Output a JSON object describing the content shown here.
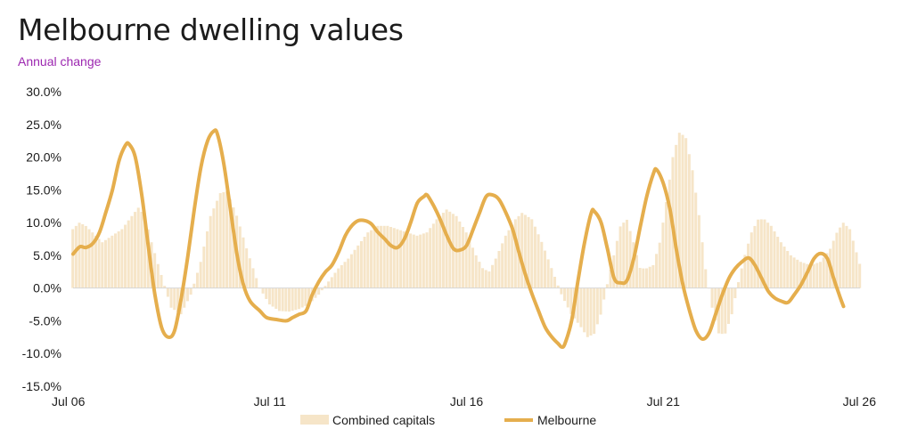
{
  "header": {
    "title": "Melbourne dwelling values",
    "subtitle": "Annual change"
  },
  "colors": {
    "bars": "#f6e5c8",
    "line": "#e5ae4d",
    "subtitle": "#9c27b0"
  },
  "chart_data": {
    "type": "bar",
    "title": "Melbourne dwelling values",
    "subtitle": "Annual change",
    "y_tick_labels": [
      "30.0%",
      "25.0%",
      "20.0%",
      "15.0%",
      "10.0%",
      "5.0%",
      "0.0%",
      "-5.0%",
      "-10.0%",
      "-15.0%"
    ],
    "x_tick_labels": [
      "Jul 06",
      "Jul 11",
      "Jul 16",
      "Jul 21",
      "Jul 26"
    ],
    "x_ticks": [
      2006.5,
      2011.5,
      2016.5,
      2021.5,
      2026.5
    ],
    "xlim": [
      2006.5,
      2026.5
    ],
    "ylim": [
      -15,
      30
    ],
    "grid": false,
    "legend_position": "bottom",
    "series": [
      {
        "name": "Combined capitals",
        "kind": "bar",
        "points": [
          [
            2006.5,
            9
          ],
          [
            2006.67,
            10
          ],
          [
            2006.83,
            9.5
          ],
          [
            2007.0,
            8.5
          ],
          [
            2007.25,
            7
          ],
          [
            2007.5,
            8
          ],
          [
            2007.75,
            9
          ],
          [
            2008.0,
            11
          ],
          [
            2008.17,
            12.3
          ],
          [
            2008.33,
            11
          ],
          [
            2008.5,
            7
          ],
          [
            2008.75,
            2
          ],
          [
            2009.0,
            -3
          ],
          [
            2009.25,
            -4
          ],
          [
            2009.5,
            -1
          ],
          [
            2009.75,
            4
          ],
          [
            2010.0,
            11
          ],
          [
            2010.25,
            14.5
          ],
          [
            2010.42,
            14.8
          ],
          [
            2010.67,
            11
          ],
          [
            2010.92,
            6
          ],
          [
            2011.25,
            0
          ],
          [
            2011.5,
            -2.5
          ],
          [
            2011.75,
            -3.5
          ],
          [
            2012.0,
            -3.6
          ],
          [
            2012.25,
            -3.2
          ],
          [
            2012.5,
            -2.5
          ],
          [
            2012.75,
            -1
          ],
          [
            2013.0,
            1
          ],
          [
            2013.25,
            3
          ],
          [
            2013.5,
            4.5
          ],
          [
            2013.75,
            6.5
          ],
          [
            2014.0,
            8.5
          ],
          [
            2014.25,
            9.5
          ],
          [
            2014.5,
            9.5
          ],
          [
            2014.75,
            9
          ],
          [
            2015.0,
            8.5
          ],
          [
            2015.25,
            8
          ],
          [
            2015.5,
            8.5
          ],
          [
            2015.75,
            10.5
          ],
          [
            2016.0,
            12
          ],
          [
            2016.25,
            11
          ],
          [
            2016.5,
            8.5
          ],
          [
            2016.75,
            5
          ],
          [
            2016.92,
            3
          ],
          [
            2017.08,
            2.5
          ],
          [
            2017.25,
            4.5
          ],
          [
            2017.5,
            8
          ],
          [
            2017.75,
            10.5
          ],
          [
            2017.92,
            11.5
          ],
          [
            2018.17,
            10.5
          ],
          [
            2018.42,
            7
          ],
          [
            2018.67,
            3
          ],
          [
            2018.92,
            -1
          ],
          [
            2019.17,
            -4
          ],
          [
            2019.42,
            -6
          ],
          [
            2019.58,
            -7.5
          ],
          [
            2019.75,
            -7
          ],
          [
            2019.92,
            -4
          ],
          [
            2020.08,
            0.5
          ],
          [
            2020.25,
            5
          ],
          [
            2020.42,
            9.5
          ],
          [
            2020.58,
            10.5
          ],
          [
            2020.75,
            7
          ],
          [
            2020.92,
            3
          ],
          [
            2021.08,
            3
          ],
          [
            2021.25,
            3.5
          ],
          [
            2021.42,
            7
          ],
          [
            2021.58,
            13
          ],
          [
            2021.75,
            20
          ],
          [
            2021.92,
            23.8
          ],
          [
            2022.08,
            23
          ],
          [
            2022.25,
            18
          ],
          [
            2022.42,
            11
          ],
          [
            2022.58,
            3
          ],
          [
            2022.75,
            -3
          ],
          [
            2022.92,
            -7
          ],
          [
            2023.08,
            -7
          ],
          [
            2023.25,
            -4
          ],
          [
            2023.42,
            1
          ],
          [
            2023.58,
            5
          ],
          [
            2023.75,
            8.5
          ],
          [
            2023.92,
            10.5
          ],
          [
            2024.08,
            10.5
          ],
          [
            2024.25,
            9.5
          ],
          [
            2024.5,
            7
          ],
          [
            2024.75,
            5
          ],
          [
            2025.0,
            4
          ],
          [
            2025.25,
            3.5
          ],
          [
            2025.5,
            4
          ],
          [
            2025.75,
            6
          ],
          [
            2025.92,
            8.5
          ],
          [
            2026.08,
            10
          ],
          [
            2026.25,
            9
          ],
          [
            2026.5,
            3.7
          ]
        ]
      },
      {
        "name": "Melbourne",
        "kind": "line",
        "points": [
          [
            2006.5,
            5.2
          ],
          [
            2006.67,
            6.3
          ],
          [
            2006.83,
            6.2
          ],
          [
            2007.0,
            6.8
          ],
          [
            2007.17,
            8.5
          ],
          [
            2007.33,
            11.5
          ],
          [
            2007.5,
            15
          ],
          [
            2007.67,
            19.5
          ],
          [
            2007.83,
            21.8
          ],
          [
            2007.92,
            22
          ],
          [
            2008.08,
            20
          ],
          [
            2008.25,
            14
          ],
          [
            2008.42,
            6
          ],
          [
            2008.58,
            -1
          ],
          [
            2008.75,
            -6
          ],
          [
            2008.92,
            -7.5
          ],
          [
            2009.08,
            -6.5
          ],
          [
            2009.25,
            -1.5
          ],
          [
            2009.42,
            5
          ],
          [
            2009.58,
            12
          ],
          [
            2009.75,
            18.5
          ],
          [
            2009.92,
            22.5
          ],
          [
            2010.08,
            24
          ],
          [
            2010.17,
            23.5
          ],
          [
            2010.33,
            19
          ],
          [
            2010.5,
            12
          ],
          [
            2010.67,
            5
          ],
          [
            2010.83,
            0.5
          ],
          [
            2011.0,
            -2
          ],
          [
            2011.25,
            -3.5
          ],
          [
            2011.42,
            -4.5
          ],
          [
            2011.67,
            -4.8
          ],
          [
            2011.92,
            -5
          ],
          [
            2012.08,
            -4.5
          ],
          [
            2012.25,
            -4
          ],
          [
            2012.42,
            -3.5
          ],
          [
            2012.58,
            -1
          ],
          [
            2012.75,
            1
          ],
          [
            2012.92,
            2.5
          ],
          [
            2013.08,
            3.5
          ],
          [
            2013.25,
            5.5
          ],
          [
            2013.42,
            8
          ],
          [
            2013.58,
            9.5
          ],
          [
            2013.75,
            10.3
          ],
          [
            2013.92,
            10.3
          ],
          [
            2014.08,
            9.8
          ],
          [
            2014.25,
            8.5
          ],
          [
            2014.42,
            7.5
          ],
          [
            2014.58,
            6.5
          ],
          [
            2014.75,
            6.2
          ],
          [
            2014.92,
            7.5
          ],
          [
            2015.08,
            10
          ],
          [
            2015.25,
            13
          ],
          [
            2015.42,
            14
          ],
          [
            2015.5,
            14.2
          ],
          [
            2015.67,
            12.5
          ],
          [
            2015.83,
            10.5
          ],
          [
            2016.0,
            8
          ],
          [
            2016.17,
            6
          ],
          [
            2016.33,
            5.8
          ],
          [
            2016.5,
            6.5
          ],
          [
            2016.67,
            9
          ],
          [
            2016.83,
            11.5
          ],
          [
            2017.0,
            14
          ],
          [
            2017.17,
            14.2
          ],
          [
            2017.33,
            13.5
          ],
          [
            2017.5,
            11.5
          ],
          [
            2017.67,
            9
          ],
          [
            2017.83,
            5.5
          ],
          [
            2018.0,
            2
          ],
          [
            2018.17,
            -1
          ],
          [
            2018.33,
            -3.5
          ],
          [
            2018.5,
            -6
          ],
          [
            2018.67,
            -7.5
          ],
          [
            2018.83,
            -8.5
          ],
          [
            2018.92,
            -9
          ],
          [
            2019.0,
            -8.5
          ],
          [
            2019.17,
            -5
          ],
          [
            2019.33,
            1
          ],
          [
            2019.5,
            7
          ],
          [
            2019.67,
            11.5
          ],
          [
            2019.75,
            11.7
          ],
          [
            2019.92,
            10
          ],
          [
            2020.08,
            6
          ],
          [
            2020.25,
            1.5
          ],
          [
            2020.42,
            0.8
          ],
          [
            2020.58,
            1.2
          ],
          [
            2020.75,
            4.5
          ],
          [
            2020.92,
            9.5
          ],
          [
            2021.08,
            14
          ],
          [
            2021.25,
            17.5
          ],
          [
            2021.33,
            18.1
          ],
          [
            2021.5,
            16
          ],
          [
            2021.67,
            12
          ],
          [
            2021.83,
            6
          ],
          [
            2022.0,
            0.5
          ],
          [
            2022.17,
            -3.5
          ],
          [
            2022.33,
            -6.5
          ],
          [
            2022.5,
            -7.8
          ],
          [
            2022.67,
            -6.8
          ],
          [
            2022.83,
            -4
          ],
          [
            2023.0,
            -1
          ],
          [
            2023.17,
            1.5
          ],
          [
            2023.33,
            3
          ],
          [
            2023.5,
            4
          ],
          [
            2023.67,
            4.6
          ],
          [
            2023.83,
            3.5
          ],
          [
            2024.0,
            1.5
          ],
          [
            2024.17,
            -0.5
          ],
          [
            2024.33,
            -1.5
          ],
          [
            2024.5,
            -2
          ],
          [
            2024.67,
            -2.2
          ],
          [
            2024.83,
            -1
          ],
          [
            2025.0,
            0.5
          ],
          [
            2025.17,
            2.5
          ],
          [
            2025.33,
            4.5
          ],
          [
            2025.5,
            5.3
          ],
          [
            2025.67,
            4.5
          ],
          [
            2025.83,
            1.5
          ],
          [
            2026.0,
            -1.5
          ],
          [
            2026.08,
            -2.8
          ]
        ]
      }
    ]
  },
  "legend": {
    "items": [
      "Combined capitals",
      "Melbourne"
    ]
  }
}
